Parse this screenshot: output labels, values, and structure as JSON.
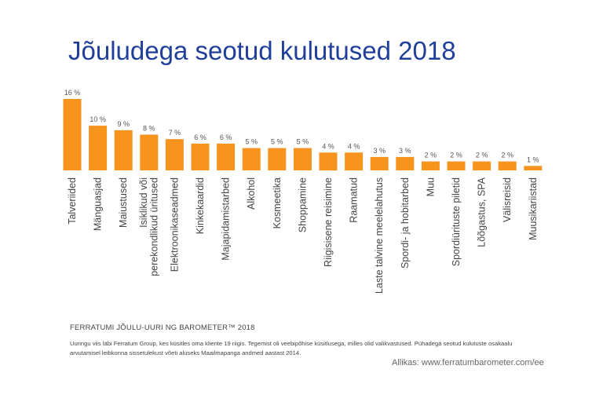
{
  "chart_data": {
    "type": "bar",
    "title": "Jõuludega seotud kulutused 2018",
    "categories": [
      "Talveriided",
      "Mänguasjad",
      "Maiustused",
      "Isiklikud või\nperekondlikud üritused",
      "Elektroonikaseadmed",
      "Kinkekaardid",
      "Majapidamistarbed",
      "Alkohol",
      "Kosmeetika",
      "Shoppamine",
      "Riigisisene reisimine",
      "Raamatud",
      "Laste talvine meelelahutus",
      "Spordi- ja hobitarbed",
      "Muu",
      "Spordiürituste piletid",
      "Lõõgastus, SPA",
      "Välisreisid",
      "Muusikariistad"
    ],
    "values": [
      16,
      10,
      9,
      8,
      7,
      6,
      6,
      5,
      5,
      5,
      4,
      4,
      3,
      3,
      2,
      2,
      2,
      2,
      1
    ],
    "value_labels": [
      "16 %",
      "10 %",
      "9 %",
      "8 %",
      "7 %",
      "6 %",
      "6 %",
      "5 %",
      "5 %",
      "5 %",
      "4 %",
      "4 %",
      "3 %",
      "3 %",
      "2 %",
      "2 %",
      "2 %",
      "2 %",
      "1 %"
    ],
    "xlabel": "",
    "ylabel": "",
    "ylim": [
      0,
      16
    ],
    "grid": false,
    "legend": "none",
    "bar_color": "#f7941d"
  },
  "footer": {
    "heading": "FERRATUMI JÕULU-UURI NG BAROMETER™ 2018",
    "note": "Uuringu viis läbi Ferratum Group, kes küsitles oma kliente 19 riigis. Tegemist oli veebipõhise küsitlusega, milles olid valikvastused. Pühadega seotud kulutuste osakaalu arvutamisel leibkonna sissetulekust võeti aluseks Maailmapanga andmed aastast 2014.",
    "source": "Allikas:  www.ferratumbarometer.com/ee"
  }
}
